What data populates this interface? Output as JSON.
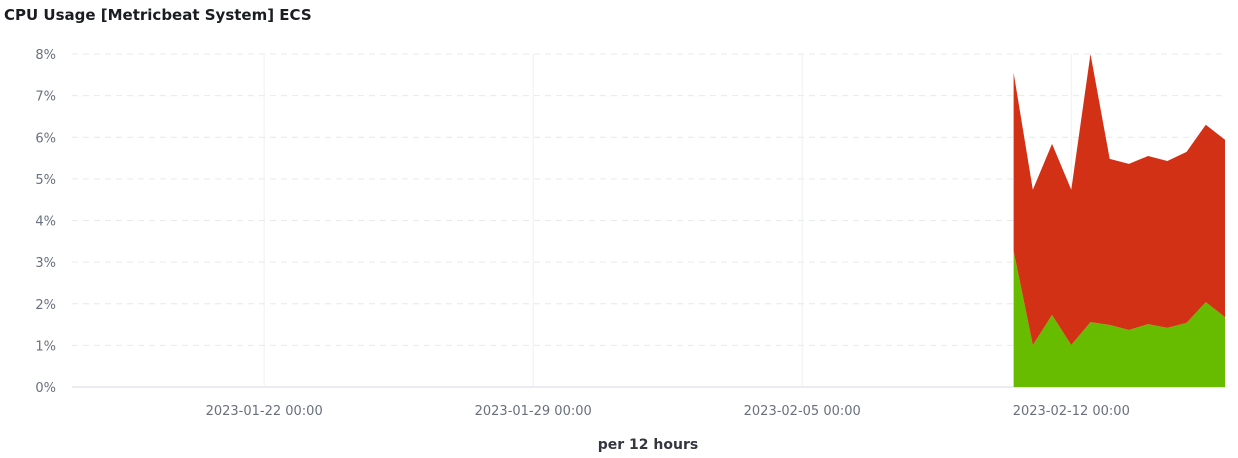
{
  "chart_data": {
    "type": "area",
    "stacked": true,
    "title": "CPU Usage [Metricbeat System] ECS",
    "xlabel": "per 12 hours",
    "ylabel": "",
    "xlim": [
      "2023-01-17 00:00",
      "2023-02-16 00:00"
    ],
    "ylim": [
      0,
      8
    ],
    "y_ticks": [
      "0%",
      "1%",
      "2%",
      "3%",
      "4%",
      "5%",
      "6%",
      "7%",
      "8%"
    ],
    "x_ticks": [
      {
        "label": "2023-01-22 00:00",
        "value": "2023-01-22 00:00"
      },
      {
        "label": "2023-01-29 00:00",
        "value": "2023-01-29 00:00"
      },
      {
        "label": "2023-02-05 00:00",
        "value": "2023-02-05 00:00"
      },
      {
        "label": "2023-02-12 00:00",
        "value": "2023-02-12 00:00"
      }
    ],
    "grid": true,
    "x": [
      "2023-02-10 12:00",
      "2023-02-11 00:00",
      "2023-02-11 12:00",
      "2023-02-12 00:00",
      "2023-02-12 12:00",
      "2023-02-13 00:00",
      "2023-02-13 12:00",
      "2023-02-14 00:00",
      "2023-02-14 12:00",
      "2023-02-15 00:00",
      "2023-02-15 12:00",
      "2023-02-16 00:00"
    ],
    "series": [
      {
        "color": "#68bc00",
        "values": [
          3.27,
          1.01,
          1.73,
          1.01,
          1.56,
          1.49,
          1.37,
          1.51,
          1.42,
          1.54,
          2.04,
          1.68
        ]
      },
      {
        "color": "#d33115",
        "values": [
          4.28,
          3.73,
          4.11,
          3.73,
          6.44,
          3.99,
          3.99,
          4.04,
          4.01,
          4.11,
          4.26,
          4.26
        ]
      }
    ]
  }
}
